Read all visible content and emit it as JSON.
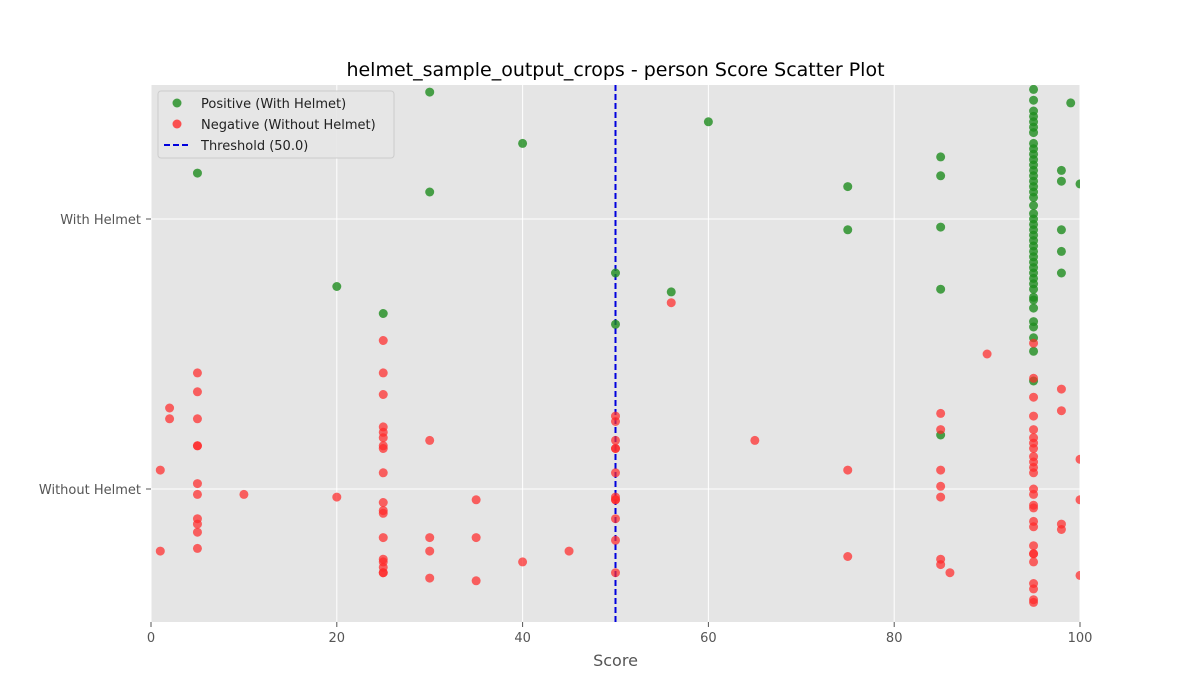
{
  "chart_data": {
    "type": "scatter",
    "title": "helmet_sample_output_crops - person Score Scatter Plot",
    "xlabel": "Score",
    "ylabel": "",
    "xlim": [
      0,
      100
    ],
    "xticks": [
      0,
      20,
      40,
      60,
      80,
      100
    ],
    "categories": [
      "Without Helmet",
      "With Helmet"
    ],
    "threshold": 50.0,
    "threshold_label": "Threshold (50.0)",
    "grid": true,
    "legend_position": "top-left",
    "colors": {
      "positive": "#1e8c1e",
      "negative": "#ff2a2a",
      "threshold": "#0000dd",
      "plot_bg": "#e5e5e5",
      "grid": "#ffffff"
    },
    "series": [
      {
        "name": "Positive (With Helmet)",
        "category": "With Helmet",
        "points": [
          [
            30,
            1.47
          ],
          [
            60,
            1.36
          ],
          [
            40,
            1.28
          ],
          [
            5,
            1.17
          ],
          [
            30,
            1.1
          ],
          [
            99,
            1.43
          ],
          [
            85,
            1.23
          ],
          [
            85,
            1.16
          ],
          [
            75,
            1.12
          ],
          [
            85,
            0.97
          ],
          [
            75,
            0.96
          ],
          [
            98,
            1.18
          ],
          [
            98,
            1.14
          ],
          [
            100,
            1.13
          ],
          [
            98,
            0.96
          ],
          [
            98,
            0.88
          ],
          [
            98,
            0.8
          ],
          [
            20,
            0.75
          ],
          [
            50,
            0.8
          ],
          [
            56,
            0.73
          ],
          [
            85,
            0.74
          ],
          [
            25,
            0.65
          ],
          [
            50,
            0.61
          ],
          [
            85,
            0.2
          ],
          [
            95,
            1.48
          ],
          [
            95,
            1.44
          ],
          [
            95,
            1.4
          ],
          [
            95,
            1.38
          ],
          [
            95,
            1.36
          ],
          [
            95,
            1.34
          ],
          [
            95,
            1.32
          ],
          [
            95,
            1.28
          ],
          [
            95,
            1.26
          ],
          [
            95,
            1.24
          ],
          [
            95,
            1.22
          ],
          [
            95,
            1.2
          ],
          [
            95,
            1.18
          ],
          [
            95,
            1.16
          ],
          [
            95,
            1.14
          ],
          [
            95,
            1.12
          ],
          [
            95,
            1.1
          ],
          [
            95,
            1.08
          ],
          [
            95,
            1.05
          ],
          [
            95,
            1.02
          ],
          [
            95,
            1.0
          ],
          [
            95,
            0.98
          ],
          [
            95,
            0.96
          ],
          [
            95,
            0.94
          ],
          [
            95,
            0.92
          ],
          [
            95,
            0.9
          ],
          [
            95,
            0.88
          ],
          [
            95,
            0.86
          ],
          [
            95,
            0.84
          ],
          [
            95,
            0.82
          ],
          [
            95,
            0.8
          ],
          [
            95,
            0.78
          ],
          [
            95,
            0.76
          ],
          [
            95,
            0.74
          ],
          [
            95,
            0.71
          ],
          [
            95,
            0.7
          ],
          [
            95,
            0.67
          ],
          [
            95,
            0.62
          ],
          [
            95,
            0.6
          ],
          [
            95,
            0.56
          ],
          [
            95,
            0.51
          ],
          [
            95,
            0.4
          ]
        ]
      },
      {
        "name": "Negative (Without Helmet)",
        "category": "Without Helmet",
        "points": [
          [
            5,
            0.43
          ],
          [
            5,
            0.36
          ],
          [
            2,
            0.3
          ],
          [
            2,
            0.26
          ],
          [
            5,
            0.26
          ],
          [
            5,
            0.16
          ],
          [
            5,
            0.16
          ],
          [
            1,
            0.07
          ],
          [
            5,
            0.02
          ],
          [
            5,
            -0.02
          ],
          [
            10,
            -0.02
          ],
          [
            5,
            -0.11
          ],
          [
            5,
            -0.13
          ],
          [
            5,
            -0.16
          ],
          [
            5,
            -0.22
          ],
          [
            1,
            -0.23
          ],
          [
            20,
            -0.03
          ],
          [
            25,
            0.55
          ],
          [
            25,
            0.43
          ],
          [
            25,
            0.35
          ],
          [
            25,
            0.23
          ],
          [
            25,
            0.21
          ],
          [
            25,
            0.19
          ],
          [
            25,
            0.16
          ],
          [
            25,
            0.15
          ],
          [
            25,
            0.06
          ],
          [
            25,
            -0.05
          ],
          [
            25,
            -0.08
          ],
          [
            25,
            -0.09
          ],
          [
            25,
            -0.18
          ],
          [
            25,
            -0.26
          ],
          [
            25,
            -0.27
          ],
          [
            25,
            -0.29
          ],
          [
            25,
            -0.31
          ],
          [
            25,
            -0.31
          ],
          [
            30,
            0.18
          ],
          [
            30,
            -0.18
          ],
          [
            30,
            -0.23
          ],
          [
            30,
            -0.33
          ],
          [
            35,
            -0.04
          ],
          [
            35,
            -0.18
          ],
          [
            35,
            -0.34
          ],
          [
            40,
            -0.27
          ],
          [
            45,
            -0.23
          ],
          [
            50,
            0.27
          ],
          [
            50,
            0.25
          ],
          [
            50,
            0.18
          ],
          [
            50,
            0.15
          ],
          [
            50,
            0.15
          ],
          [
            50,
            0.06
          ],
          [
            50,
            -0.03
          ],
          [
            50,
            -0.04
          ],
          [
            50,
            -0.04
          ],
          [
            50,
            -0.11
          ],
          [
            50,
            -0.19
          ],
          [
            50,
            -0.31
          ],
          [
            56,
            0.69
          ],
          [
            65,
            0.18
          ],
          [
            75,
            0.07
          ],
          [
            75,
            -0.25
          ],
          [
            85,
            0.28
          ],
          [
            85,
            0.22
          ],
          [
            85,
            0.07
          ],
          [
            85,
            0.01
          ],
          [
            85,
            -0.03
          ],
          [
            85,
            -0.26
          ],
          [
            85,
            -0.28
          ],
          [
            86,
            -0.31
          ],
          [
            90,
            0.5
          ],
          [
            95,
            0.54
          ],
          [
            95,
            0.41
          ],
          [
            95,
            0.34
          ],
          [
            95,
            0.27
          ],
          [
            95,
            0.22
          ],
          [
            95,
            0.19
          ],
          [
            95,
            0.17
          ],
          [
            95,
            0.15
          ],
          [
            95,
            0.12
          ],
          [
            95,
            0.1
          ],
          [
            95,
            0.08
          ],
          [
            95,
            0.06
          ],
          [
            95,
            0.0
          ],
          [
            95,
            -0.02
          ],
          [
            95,
            -0.06
          ],
          [
            95,
            -0.07
          ],
          [
            95,
            -0.12
          ],
          [
            95,
            -0.14
          ],
          [
            95,
            -0.21
          ],
          [
            95,
            -0.24
          ],
          [
            95,
            -0.24
          ],
          [
            95,
            -0.27
          ],
          [
            95,
            -0.35
          ],
          [
            95,
            -0.37
          ],
          [
            95,
            -0.41
          ],
          [
            95,
            -0.42
          ],
          [
            98,
            0.37
          ],
          [
            98,
            0.29
          ],
          [
            98,
            -0.13
          ],
          [
            98,
            -0.15
          ],
          [
            100,
            0.11
          ],
          [
            100,
            -0.04
          ],
          [
            100,
            -0.32
          ]
        ]
      }
    ]
  }
}
